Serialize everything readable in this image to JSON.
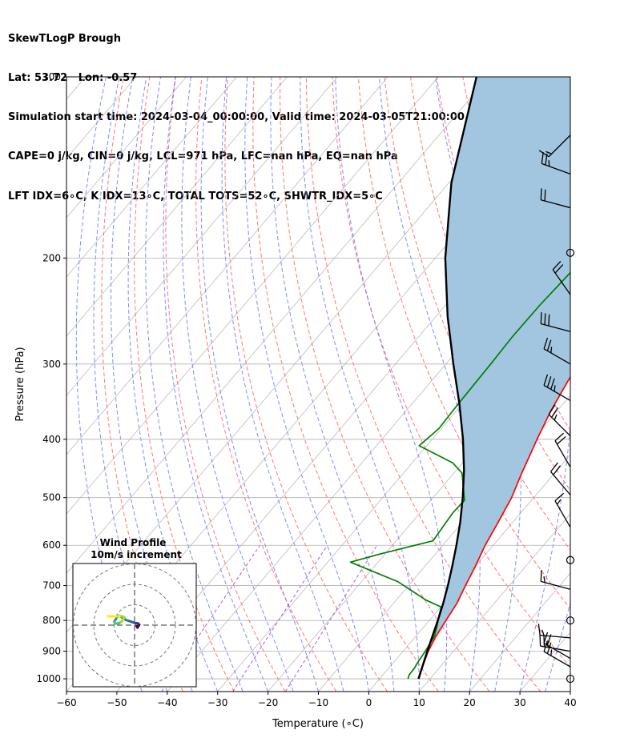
{
  "header": {
    "line1": "SkewTLogP Brough",
    "line2": "Lat: 53.72   Lon: -0.57",
    "line3": "Simulation start time: 2024-03-04_00:00:00, Valid time: 2024-03-05T21:00:00.00",
    "line4": "CAPE=0 j/kg, CIN=0 j/kg, LCL=971 hPa, LFC=nan hPa, EQ=nan hPa",
    "line5": "LFT IDX=6∘C, K IDX=13∘C, TOTAL TOTS=52∘C, SHWTR_IDX=5∘C"
  },
  "chart_data": [
    {
      "type": "line",
      "subtype": "skew-T log-P diagram",
      "xlabel": "Temperature (∘C)",
      "ylabel": "Pressure (hPa)",
      "xlim": [
        -60,
        40
      ],
      "ylim": [
        1050,
        100
      ],
      "y_scale": "log",
      "x_ticks": [
        -60,
        -50,
        -40,
        -30,
        -20,
        -10,
        0,
        10,
        20,
        30,
        40
      ],
      "x_tick_labels": [
        "−60",
        "−50",
        "−40",
        "−30",
        "−20",
        "−10",
        "0",
        "10",
        "20",
        "30",
        "40"
      ],
      "y_ticks": [
        100,
        200,
        300,
        400,
        500,
        600,
        700,
        800,
        900,
        1000
      ],
      "grid": true,
      "series": [
        {
          "role": "temperature",
          "color": "#ff0000",
          "points": [
            [
              1000,
              7.8
            ],
            [
              960,
              6.6
            ],
            [
              900,
              5.0
            ],
            [
              850,
              4.0
            ],
            [
              800,
              3.3
            ],
            [
              750,
              2.6
            ],
            [
              700,
              1.3
            ],
            [
              650,
              0.0
            ],
            [
              600,
              -1.6
            ],
            [
              550,
              -2.9
            ],
            [
              500,
              -4.4
            ],
            [
              460,
              -6.3
            ],
            [
              400,
              -9.2
            ],
            [
              360,
              -11.2
            ],
            [
              320,
              -12.9
            ],
            [
              300,
              -13.7
            ],
            [
              270,
              -13.9
            ],
            [
              250,
              -13.0
            ],
            [
              230,
              -11.5
            ],
            [
              210,
              -8.4
            ],
            [
              195,
              -5.0
            ],
            [
              180,
              -3.6
            ],
            [
              170,
              -2.7
            ],
            [
              160,
              -1.8
            ],
            [
              150,
              0.5
            ],
            [
              140,
              2.3
            ],
            [
              130,
              4.4
            ],
            [
              120,
              7.0
            ],
            [
              112,
              9.5
            ],
            [
              105,
              10.9
            ],
            [
              100,
              11.2
            ]
          ]
        },
        {
          "role": "dewpoint",
          "color": "#008000",
          "points": [
            [
              1000,
              5.6
            ],
            [
              985,
              5.2
            ],
            [
              960,
              5.1
            ],
            [
              940,
              4.8
            ],
            [
              900,
              4.4
            ],
            [
              850,
              3.7
            ],
            [
              820,
              2.6
            ],
            [
              790,
              1.3
            ],
            [
              760,
              0.1
            ],
            [
              740,
              -4.1
            ],
            [
              690,
              -12.7
            ],
            [
              640,
              -25.5
            ],
            [
              620,
              -20.9
            ],
            [
              590,
              -12.7
            ],
            [
              530,
              -13.5
            ],
            [
              505,
              -13.3
            ],
            [
              455,
              -18.4
            ],
            [
              438,
              -21.9
            ],
            [
              410,
              -31.5
            ],
            [
              384,
              -30.5
            ],
            [
              350,
              -30.8
            ],
            [
              300,
              -31.1
            ],
            [
              270,
              -31.4
            ],
            [
              240,
              -31.3
            ],
            [
              215,
              -30.8
            ],
            [
              200,
              -30.5
            ],
            [
              185,
              -30.1
            ],
            [
              170,
              -29.2
            ],
            [
              160,
              -27.4
            ],
            [
              140,
              -18.4
            ],
            [
              120,
              -8.5
            ],
            [
              100,
              3.7
            ]
          ]
        },
        {
          "role": "parcel profile",
          "color": "#000000",
          "points": [
            [
              1000,
              7.7
            ],
            [
              971,
              6.9
            ],
            [
              950,
              6.3
            ],
            [
              900,
              4.8
            ],
            [
              850,
              3.3
            ],
            [
              800,
              1.7
            ],
            [
              750,
              -0.1
            ],
            [
              700,
              -2.2
            ],
            [
              650,
              -4.6
            ],
            [
              600,
              -7.3
            ],
            [
              550,
              -10.4
            ],
            [
              500,
              -14.1
            ],
            [
              450,
              -18.5
            ],
            [
              400,
              -23.9
            ],
            [
              350,
              -30.5
            ],
            [
              300,
              -38.5
            ],
            [
              250,
              -47.7
            ],
            [
              200,
              -58.0
            ],
            [
              150,
              -69.5
            ],
            [
              100,
              -82.4
            ]
          ]
        }
      ],
      "shaded_region": {
        "between": [
          "temperature",
          "parcel profile"
        ],
        "color": "#a3c6e0"
      },
      "background_lines": [
        {
          "name": "dry adiabats",
          "color": "#ff6666",
          "style": "dashed"
        },
        {
          "name": "moist adiabats",
          "color": "#6677ff",
          "style": "dashed"
        },
        {
          "name": "mixing ratio lines",
          "color": "#9933cc",
          "style": "dashed"
        },
        {
          "name": "isotherms",
          "color": "#bbbbbb",
          "style": "solid"
        }
      ],
      "wind_barbs": [
        {
          "pressure": 1000,
          "speed_kt": 0,
          "dir_deg": 0
        },
        {
          "pressure": 955,
          "speed_kt": 25,
          "dir_deg": 300
        },
        {
          "pressure": 925,
          "speed_kt": 20,
          "dir_deg": 300
        },
        {
          "pressure": 900,
          "speed_kt": 25,
          "dir_deg": 280
        },
        {
          "pressure": 855,
          "speed_kt": 15,
          "dir_deg": 275
        },
        {
          "pressure": 800,
          "speed_kt": 0,
          "dir_deg": 0
        },
        {
          "pressure": 710,
          "speed_kt": 15,
          "dir_deg": 285
        },
        {
          "pressure": 635,
          "speed_kt": 0,
          "dir_deg": 0
        },
        {
          "pressure": 560,
          "speed_kt": 15,
          "dir_deg": 330
        },
        {
          "pressure": 495,
          "speed_kt": 20,
          "dir_deg": 320
        },
        {
          "pressure": 445,
          "speed_kt": 20,
          "dir_deg": 330
        },
        {
          "pressure": 395,
          "speed_kt": 25,
          "dir_deg": 315
        },
        {
          "pressure": 345,
          "speed_kt": 35,
          "dir_deg": 300
        },
        {
          "pressure": 300,
          "speed_kt": 25,
          "dir_deg": 300
        },
        {
          "pressure": 265,
          "speed_kt": 30,
          "dir_deg": 285
        },
        {
          "pressure": 230,
          "speed_kt": 20,
          "dir_deg": 325
        },
        {
          "pressure": 196,
          "speed_kt": 0,
          "dir_deg": 0
        },
        {
          "pressure": 165,
          "speed_kt": 20,
          "dir_deg": 285
        },
        {
          "pressure": 145,
          "speed_kt": 25,
          "dir_deg": 290
        },
        {
          "pressure": 125,
          "speed_kt": 15,
          "dir_deg": 225
        }
      ]
    },
    {
      "type": "scatter",
      "subtype": "hodograph",
      "title": "Wind Profile",
      "subtitle": "10m/s increment",
      "ring_spacing_ms": 10,
      "rings": 3,
      "colormap": "viridis",
      "u_ms": [
        1.0,
        1.4,
        1.8,
        2.3,
        1.8,
        1.0,
        0.4,
        -0.2,
        -0.8,
        -1.4,
        -2.2,
        -3.2,
        -4.3,
        -5.6,
        -7.0,
        -8.0,
        -8.8,
        -9.4,
        -10.0,
        -9.5,
        -8.2,
        -6.6,
        -5.6,
        -5.0,
        -5.8,
        -7.5,
        -9.0,
        -11.5,
        -13.0
      ],
      "v_ms": [
        -0.5,
        -1.2,
        -0.6,
        0.2,
        0.8,
        1.0,
        0.9,
        1.2,
        1.4,
        1.6,
        1.9,
        2.2,
        2.6,
        3.4,
        4.4,
        4.6,
        3.6,
        2.6,
        1.7,
        0.8,
        0.8,
        1.5,
        2.8,
        3.8,
        4.3,
        4.4,
        4.3,
        4.2,
        4.4
      ]
    }
  ]
}
